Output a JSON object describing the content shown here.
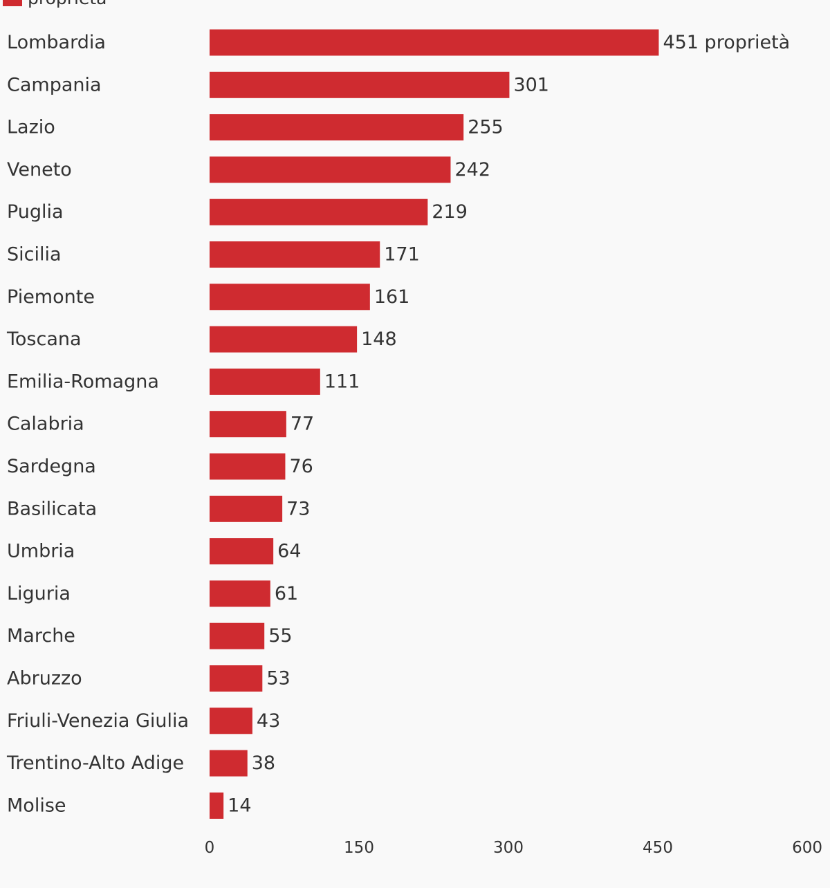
{
  "chart_data": {
    "type": "bar",
    "orientation": "horizontal",
    "legend": {
      "placement": "top-left",
      "entries": [
        "proprietà"
      ]
    },
    "series": [
      {
        "name": "proprietà",
        "color": "#cf2b30",
        "values": [
          451,
          301,
          255,
          242,
          219,
          171,
          161,
          148,
          111,
          77,
          76,
          73,
          64,
          61,
          55,
          53,
          43,
          38,
          14
        ]
      }
    ],
    "categories": [
      "Lombardia",
      "Campania",
      "Lazio",
      "Veneto",
      "Puglia",
      "Sicilia",
      "Piemonte",
      "Toscana",
      "Emilia-Romagna",
      "Calabria",
      "Sardegna",
      "Basilicata",
      "Umbria",
      "Liguria",
      "Marche",
      "Abruzzo",
      "Friuli-Venezia Giulia",
      "Trentino-Alto Adige",
      "Molise"
    ],
    "data_labels": [
      "451 proprietà",
      "301",
      "255",
      "242",
      "219",
      "171",
      "161",
      "148",
      "111",
      "77",
      "76",
      "73",
      "64",
      "61",
      "55",
      "53",
      "43",
      "38",
      "14"
    ],
    "x_ticks": [
      0,
      150,
      300,
      450,
      600
    ],
    "x_tick_labels": [
      "0",
      "150",
      "300",
      "450",
      "600"
    ],
    "xlim": [
      0,
      600
    ],
    "grid": false,
    "title": "",
    "xlabel": "",
    "ylabel": ""
  }
}
